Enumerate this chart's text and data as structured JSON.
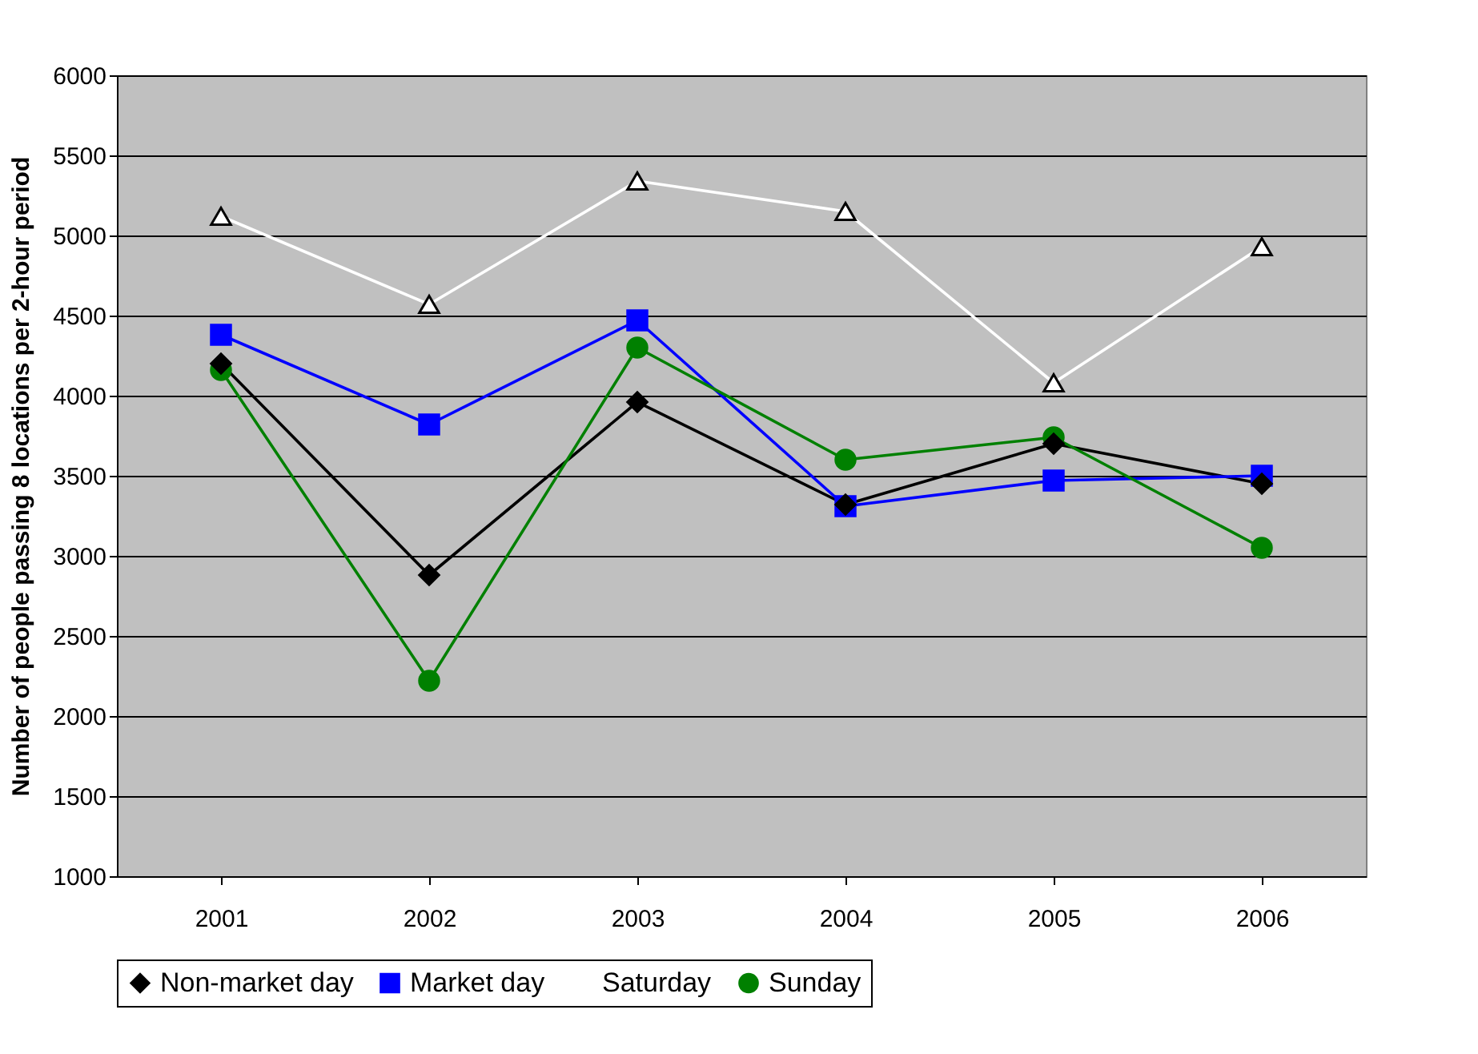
{
  "chart_data": {
    "type": "line",
    "ylabel": "Number of people passing 8 locations per 2-hour period",
    "categories": [
      "2001",
      "2002",
      "2003",
      "2004",
      "2005",
      "2006"
    ],
    "series": [
      {
        "name": "Non-market day",
        "color": "#000000",
        "marker": "diamond",
        "values": [
          4200,
          2880,
          3960,
          3320,
          3700,
          3450
        ]
      },
      {
        "name": "Market day",
        "color": "#0000ff",
        "marker": "square",
        "values": [
          4380,
          3820,
          4470,
          3310,
          3470,
          3500
        ]
      },
      {
        "name": "Saturday",
        "color": "#ffffff",
        "marker": "triangle",
        "values": [
          5120,
          4570,
          5340,
          5150,
          4080,
          4930
        ]
      },
      {
        "name": "Sunday",
        "color": "#008000",
        "marker": "circle",
        "values": [
          4160,
          2220,
          4300,
          3600,
          3740,
          3050
        ]
      }
    ],
    "ylim": [
      1000,
      6000
    ],
    "yticks": [
      1000,
      1500,
      2000,
      2500,
      3000,
      3500,
      4000,
      4500,
      5000,
      5500,
      6000
    ],
    "grid": "y",
    "legend": "bottom",
    "line_style": "solid"
  }
}
